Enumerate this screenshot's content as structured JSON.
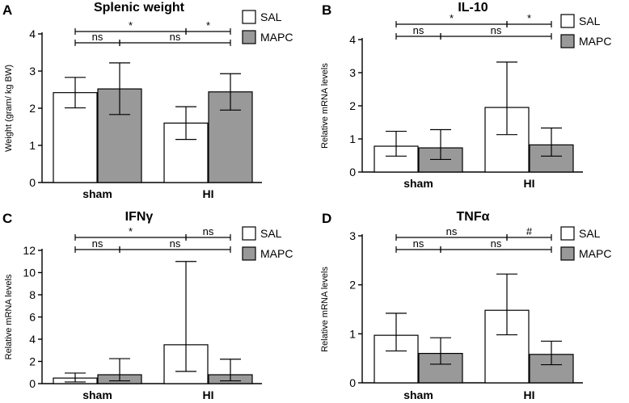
{
  "chart_data": [
    {
      "panel": "A",
      "type": "bar",
      "title": "Splenic weight",
      "ylabel": "Weight (gram/ kg BW)",
      "ylim": [
        0,
        4
      ],
      "yticks": [
        0,
        1,
        2,
        3,
        4
      ],
      "categories": [
        "sham",
        "HI"
      ],
      "series": [
        {
          "name": "SAL",
          "color": "#ffffff",
          "values": [
            2.42,
            1.6
          ],
          "upper": [
            2.83,
            2.04
          ],
          "lower": [
            2.01,
            1.16
          ]
        },
        {
          "name": "MAPC",
          "color": "#999999",
          "values": [
            2.52,
            2.44
          ],
          "upper": [
            3.22,
            2.93
          ],
          "lower": [
            1.83,
            1.95
          ]
        }
      ],
      "comparisons": [
        {
          "label": "*",
          "from": [
            0,
            0
          ],
          "to": [
            1,
            0
          ],
          "row": 0
        },
        {
          "label": "*",
          "from": [
            1,
            0
          ],
          "to": [
            1,
            1
          ],
          "row": 0
        },
        {
          "label": "ns",
          "from": [
            0,
            0
          ],
          "to": [
            0,
            1
          ],
          "row": 1
        },
        {
          "label": "ns",
          "from": [
            0,
            1
          ],
          "to": [
            1,
            1
          ],
          "row": 1
        }
      ]
    },
    {
      "panel": "B",
      "type": "bar",
      "title": "IL-10",
      "ylabel": "Relative mRNA levels",
      "ylim": [
        0,
        4
      ],
      "yticks": [
        0,
        1,
        2,
        3,
        4
      ],
      "categories": [
        "sham",
        "HI"
      ],
      "series": [
        {
          "name": "SAL",
          "color": "#ffffff",
          "values": [
            0.78,
            1.95
          ],
          "upper": [
            1.23,
            3.32
          ],
          "lower": [
            0.48,
            1.13
          ]
        },
        {
          "name": "MAPC",
          "color": "#999999",
          "values": [
            0.73,
            0.82
          ],
          "upper": [
            1.28,
            1.33
          ],
          "lower": [
            0.38,
            0.48
          ]
        }
      ],
      "comparisons": [
        {
          "label": "*",
          "from": [
            0,
            0
          ],
          "to": [
            1,
            0
          ],
          "row": 0
        },
        {
          "label": "*",
          "from": [
            1,
            0
          ],
          "to": [
            1,
            1
          ],
          "row": 0
        },
        {
          "label": "ns",
          "from": [
            0,
            0
          ],
          "to": [
            0,
            1
          ],
          "row": 1
        },
        {
          "label": "ns",
          "from": [
            0,
            1
          ],
          "to": [
            1,
            1
          ],
          "row": 1
        }
      ]
    },
    {
      "panel": "C",
      "type": "bar",
      "title": "IFNγ",
      "ylabel": "Relative mRNA levels",
      "ylim": [
        0,
        12
      ],
      "yticks": [
        0,
        2,
        4,
        6,
        8,
        10,
        12
      ],
      "categories": [
        "sham",
        "HI"
      ],
      "series": [
        {
          "name": "SAL",
          "color": "#ffffff",
          "values": [
            0.5,
            3.5
          ],
          "upper": [
            0.95,
            11.0
          ],
          "lower": [
            0.15,
            1.1
          ]
        },
        {
          "name": "MAPC",
          "color": "#999999",
          "values": [
            0.8,
            0.8
          ],
          "upper": [
            2.25,
            2.2
          ],
          "lower": [
            0.25,
            0.25
          ]
        }
      ],
      "comparisons": [
        {
          "label": "*",
          "from": [
            0,
            0
          ],
          "to": [
            1,
            0
          ],
          "row": 0
        },
        {
          "label": "ns",
          "from": [
            1,
            0
          ],
          "to": [
            1,
            1
          ],
          "row": 0
        },
        {
          "label": "ns",
          "from": [
            0,
            0
          ],
          "to": [
            0,
            1
          ],
          "row": 1
        },
        {
          "label": "ns",
          "from": [
            0,
            1
          ],
          "to": [
            1,
            1
          ],
          "row": 1
        }
      ]
    },
    {
      "panel": "D",
      "type": "bar",
      "title": "TNFα",
      "ylabel": "Relative mRNA levels",
      "ylim": [
        0,
        3
      ],
      "yticks": [
        0,
        1,
        2,
        3
      ],
      "categories": [
        "sham",
        "HI"
      ],
      "series": [
        {
          "name": "SAL",
          "color": "#ffffff",
          "values": [
            0.97,
            1.48
          ],
          "upper": [
            1.42,
            2.22
          ],
          "lower": [
            0.65,
            0.98
          ]
        },
        {
          "name": "MAPC",
          "color": "#999999",
          "values": [
            0.6,
            0.58
          ],
          "upper": [
            0.92,
            0.85
          ],
          "lower": [
            0.38,
            0.37
          ]
        }
      ],
      "comparisons": [
        {
          "label": "ns",
          "from": [
            0,
            0
          ],
          "to": [
            1,
            0
          ],
          "row": 0
        },
        {
          "label": "#",
          "from": [
            1,
            0
          ],
          "to": [
            1,
            1
          ],
          "row": 0
        },
        {
          "label": "ns",
          "from": [
            0,
            0
          ],
          "to": [
            0,
            1
          ],
          "row": 1
        },
        {
          "label": "ns",
          "from": [
            0,
            1
          ],
          "to": [
            1,
            1
          ],
          "row": 1
        }
      ]
    }
  ]
}
